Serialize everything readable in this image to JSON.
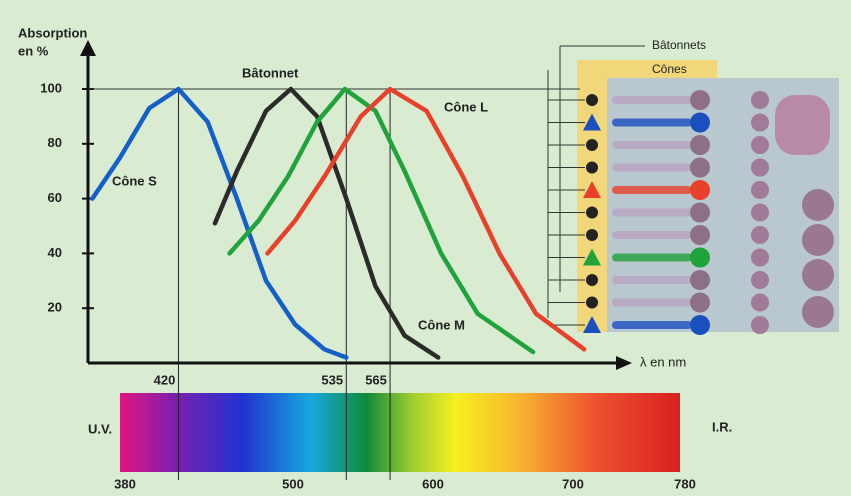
{
  "chart_data": {
    "type": "line",
    "y_label": [
      "Absorption",
      "en %"
    ],
    "x_label": "λ en nm",
    "xlim": [
      358,
      726
    ],
    "ylim": [
      0,
      100
    ],
    "xticks": [
      420,
      535,
      565
    ],
    "yticks": [
      20,
      40,
      60,
      80,
      100
    ],
    "series": [
      {
        "name": "Cône S",
        "color": "#1560c8",
        "x": [
          361,
          380,
          400,
          420,
          440,
          460,
          480,
          500,
          520,
          535
        ],
        "values": [
          60,
          75,
          93,
          100,
          88,
          60,
          30,
          14,
          5,
          2
        ]
      },
      {
        "name": "Bâtonnet",
        "color": "#2b2b2b",
        "x": [
          445,
          460,
          480,
          497,
          515,
          535,
          555,
          575,
          598
        ],
        "values": [
          51,
          70,
          92,
          100,
          90,
          60,
          28,
          10,
          2
        ]
      },
      {
        "name": "Cône M",
        "color": "#1fa33a",
        "x": [
          455,
          475,
          495,
          515,
          534,
          555,
          575,
          600,
          625,
          663
        ],
        "values": [
          40,
          52,
          68,
          88,
          100,
          92,
          70,
          40,
          18,
          4
        ]
      },
      {
        "name": "Cône L",
        "color": "#e8402a",
        "x": [
          481,
          500,
          520,
          545,
          565,
          590,
          615,
          640,
          665,
          698
        ],
        "values": [
          40,
          52,
          68,
          90,
          100,
          92,
          68,
          40,
          18,
          5
        ]
      }
    ],
    "spectrum": {
      "lim": [
        380,
        780
      ],
      "ticks": [
        380,
        500,
        600,
        700,
        780
      ],
      "left_label": "U.V.",
      "right_label": "I.R."
    },
    "retina": {
      "rods_label": "Bâtonnets",
      "cones_label": "Cônes"
    }
  }
}
